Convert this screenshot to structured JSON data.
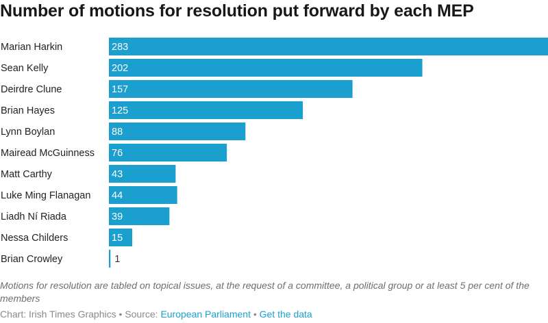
{
  "title": "Number of motions for resolution put forward by each MEP",
  "note": "Motions for resolution are tabled on topical issues, at the request of a committee, a political group or at least 5 per cent of the members",
  "footer": {
    "credit": "Chart: Irish Times Graphics",
    "separator": " • ",
    "source_label": "Source: ",
    "source_link": "European Parliament",
    "data_link": "Get the data"
  },
  "colors": {
    "bar": "#1a9fcf",
    "label_inside": "#ffffff",
    "label_outside": "#333333"
  },
  "chart_data": {
    "type": "bar",
    "orientation": "horizontal",
    "categories": [
      "Marian Harkin",
      "Sean Kelly",
      "Deirdre Clune",
      "Brian Hayes",
      "Lynn Boylan",
      "Mairead McGuinness",
      "Matt Carthy",
      "Luke Ming Flanagan",
      "Liadh Ní Riada",
      "Nessa Childers",
      "Brian Crowley"
    ],
    "values": [
      283,
      202,
      157,
      125,
      88,
      76,
      43,
      44,
      39,
      15,
      1
    ],
    "xlim": [
      0,
      283
    ],
    "grid": false,
    "data_labels": true
  }
}
